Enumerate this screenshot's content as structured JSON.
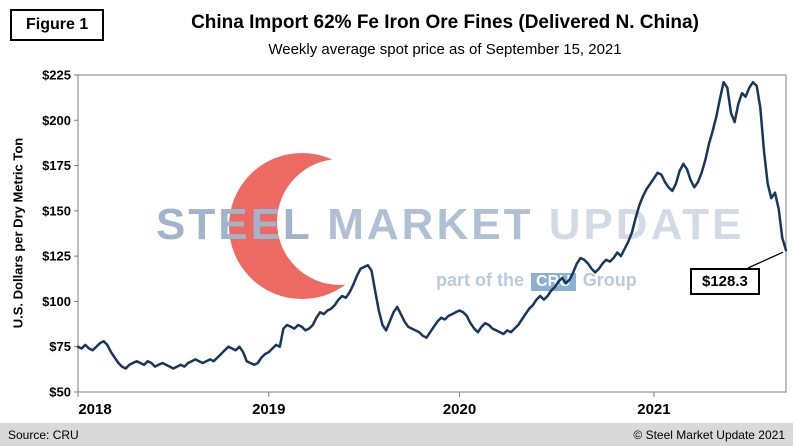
{
  "figure_label": "Figure 1",
  "title": "China Import 62% Fe Iron Ore Fines (Delivered N. China)",
  "subtitle": "Weekly average spot price as of September 15, 2021",
  "annotation": {
    "label": "$128.3"
  },
  "footer": {
    "source": "Source: CRU",
    "copyright": "© Steel Market Update 2021"
  },
  "watermark": {
    "steel": "STEEL",
    "market": "MARKET",
    "update": "UPDATE",
    "part_of": "part of the",
    "cru": "CRU",
    "group": "Group"
  },
  "colors": {
    "line": "#17375e",
    "plot_border": "#7f7f7f",
    "footer_bg": "#d9d9d9",
    "watermark_red": "#e8453c",
    "watermark_blue": "#9db1ca",
    "annotation_border": "#000000"
  },
  "chart_data": {
    "type": "line",
    "title": "China Import 62% Fe Iron Ore Fines (Delivered N. China)",
    "subtitle": "Weekly average spot price as of September 15, 2021",
    "xlabel": "",
    "ylabel": "U.S. Dollars per Dry Metric Ton",
    "ylim": [
      50,
      225
    ],
    "ytick_step": 25,
    "ytick_prefix": "$",
    "grid": false,
    "legend": false,
    "x_tick_labels": [
      {
        "label": "2018",
        "week": 0
      },
      {
        "label": "2019",
        "week": 52
      },
      {
        "label": "2020",
        "week": 104
      },
      {
        "label": "2021",
        "week": 157
      }
    ],
    "final_value": 128.3,
    "series": [
      {
        "name": "Weekly average spot price (USD per dry metric ton)",
        "values": [
          75,
          74,
          76,
          74,
          73,
          75,
          77,
          78,
          76,
          72,
          69,
          66,
          64,
          63,
          65,
          66,
          67,
          66,
          65,
          67,
          66,
          64,
          65,
          66,
          65,
          64,
          63,
          64,
          65,
          64,
          66,
          67,
          68,
          67,
          66,
          67,
          68,
          67,
          69,
          71,
          73,
          75,
          74,
          73,
          75,
          72,
          67,
          66,
          65,
          66,
          69,
          71,
          72,
          74,
          76,
          75,
          85,
          87,
          86,
          85,
          87,
          86,
          84,
          85,
          87,
          91,
          94,
          93,
          95,
          96,
          98,
          101,
          103,
          102,
          105,
          109,
          114,
          118,
          119,
          120,
          117,
          106,
          95,
          87,
          84,
          89,
          94,
          97,
          93,
          89,
          86,
          85,
          84,
          83,
          81,
          80,
          83,
          86,
          89,
          91,
          90,
          92,
          93,
          94,
          95,
          94,
          92,
          88,
          85,
          83,
          86,
          88,
          87,
          85,
          84,
          83,
          82,
          84,
          83,
          85,
          87,
          90,
          93,
          96,
          98,
          101,
          103,
          101,
          103,
          106,
          108,
          111,
          113,
          110,
          112,
          116,
          121,
          124,
          123,
          121,
          118,
          116,
          118,
          121,
          123,
          122,
          124,
          127,
          125,
          129,
          133,
          138,
          146,
          153,
          158,
          162,
          165,
          168,
          171,
          170,
          166,
          163,
          161,
          165,
          172,
          176,
          173,
          167,
          163,
          166,
          171,
          178,
          187,
          194,
          202,
          212,
          221,
          218,
          204,
          199,
          209,
          215,
          213,
          218,
          221,
          219,
          207,
          183,
          165,
          157,
          160,
          151,
          135,
          128.3
        ]
      }
    ]
  }
}
